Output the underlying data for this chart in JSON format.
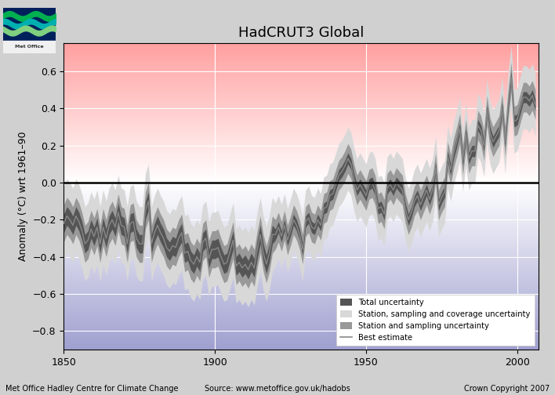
{
  "title": "HadCRUT3 Global",
  "ylabel": "Anomaly (°C) wrt 1961–90",
  "xlim": [
    1850,
    2007
  ],
  "ylim": [
    -0.9,
    0.75
  ],
  "yticks": [
    -0.8,
    -0.6,
    -0.4,
    -0.2,
    0.0,
    0.2,
    0.4,
    0.6
  ],
  "xticks": [
    1850,
    1900,
    1950,
    2000
  ],
  "footer_left": "Met Office Hadley Centre for Climate Change",
  "footer_center": "Source: www.metoffice.gov.uk/hadobs",
  "footer_right": "Crown Copyright 2007",
  "zero_line_color": "#000000",
  "best_estimate_color": "#888888",
  "color_total": "#555555",
  "color_ssc": "#d8d8d8",
  "color_ss": "#999999",
  "grid_color": "#ffffff",
  "years": [
    1850,
    1851,
    1852,
    1853,
    1854,
    1855,
    1856,
    1857,
    1858,
    1859,
    1860,
    1861,
    1862,
    1863,
    1864,
    1865,
    1866,
    1867,
    1868,
    1869,
    1870,
    1871,
    1872,
    1873,
    1874,
    1875,
    1876,
    1877,
    1878,
    1879,
    1880,
    1881,
    1882,
    1883,
    1884,
    1885,
    1886,
    1887,
    1888,
    1889,
    1890,
    1891,
    1892,
    1893,
    1894,
    1895,
    1896,
    1897,
    1898,
    1899,
    1900,
    1901,
    1902,
    1903,
    1904,
    1905,
    1906,
    1907,
    1908,
    1909,
    1910,
    1911,
    1912,
    1913,
    1914,
    1915,
    1916,
    1917,
    1918,
    1919,
    1920,
    1921,
    1922,
    1923,
    1924,
    1925,
    1926,
    1927,
    1928,
    1929,
    1930,
    1931,
    1932,
    1933,
    1934,
    1935,
    1936,
    1937,
    1938,
    1939,
    1940,
    1941,
    1942,
    1943,
    1944,
    1945,
    1946,
    1947,
    1948,
    1949,
    1950,
    1951,
    1952,
    1953,
    1954,
    1955,
    1956,
    1957,
    1958,
    1959,
    1960,
    1961,
    1962,
    1963,
    1964,
    1965,
    1966,
    1967,
    1968,
    1969,
    1970,
    1971,
    1972,
    1973,
    1974,
    1975,
    1976,
    1977,
    1978,
    1979,
    1980,
    1981,
    1982,
    1983,
    1984,
    1985,
    1986,
    1987,
    1988,
    1989,
    1990,
    1991,
    1992,
    1993,
    1994,
    1995,
    1996,
    1997,
    1998,
    1999,
    2000,
    2001,
    2002,
    2003,
    2004,
    2005,
    2006
  ],
  "best": [
    -0.22,
    -0.18,
    -0.2,
    -0.23,
    -0.18,
    -0.21,
    -0.26,
    -0.33,
    -0.31,
    -0.25,
    -0.29,
    -0.24,
    -0.33,
    -0.24,
    -0.3,
    -0.23,
    -0.2,
    -0.24,
    -0.16,
    -0.23,
    -0.24,
    -0.33,
    -0.22,
    -0.21,
    -0.3,
    -0.33,
    -0.33,
    -0.15,
    -0.1,
    -0.33,
    -0.27,
    -0.23,
    -0.27,
    -0.3,
    -0.35,
    -0.37,
    -0.34,
    -0.35,
    -0.3,
    -0.27,
    -0.38,
    -0.37,
    -0.42,
    -0.44,
    -0.4,
    -0.43,
    -0.32,
    -0.3,
    -0.41,
    -0.36,
    -0.36,
    -0.35,
    -0.4,
    -0.44,
    -0.43,
    -0.37,
    -0.31,
    -0.45,
    -0.43,
    -0.46,
    -0.44,
    -0.47,
    -0.43,
    -0.46,
    -0.36,
    -0.28,
    -0.38,
    -0.44,
    -0.38,
    -0.28,
    -0.28,
    -0.24,
    -0.29,
    -0.23,
    -0.31,
    -0.26,
    -0.2,
    -0.23,
    -0.28,
    -0.36,
    -0.21,
    -0.19,
    -0.24,
    -0.25,
    -0.2,
    -0.23,
    -0.14,
    -0.13,
    -0.07,
    -0.06,
    -0.01,
    0.04,
    0.06,
    0.09,
    0.13,
    0.1,
    0.02,
    -0.04,
    -0.01,
    -0.04,
    -0.07,
    -0.01,
    -0.0,
    -0.04,
    -0.14,
    -0.13,
    -0.17,
    -0.03,
    -0.01,
    -0.04,
    -0.0,
    -0.02,
    -0.04,
    -0.14,
    -0.2,
    -0.16,
    -0.1,
    -0.07,
    -0.12,
    -0.08,
    -0.04,
    -0.09,
    -0.04,
    0.08,
    -0.12,
    -0.08,
    -0.05,
    0.14,
    0.07,
    0.16,
    0.22,
    0.29,
    0.12,
    0.26,
    0.13,
    0.17,
    0.17,
    0.31,
    0.28,
    0.2,
    0.39,
    0.27,
    0.22,
    0.25,
    0.28,
    0.4,
    0.22,
    0.42,
    0.57,
    0.33,
    0.34,
    0.4,
    0.46,
    0.46,
    0.44,
    0.47,
    0.42
  ],
  "ssc_lo": [
    -0.42,
    -0.38,
    -0.4,
    -0.43,
    -0.38,
    -0.41,
    -0.46,
    -0.53,
    -0.51,
    -0.45,
    -0.49,
    -0.44,
    -0.53,
    -0.44,
    -0.5,
    -0.43,
    -0.4,
    -0.44,
    -0.36,
    -0.43,
    -0.44,
    -0.53,
    -0.42,
    -0.41,
    -0.5,
    -0.53,
    -0.53,
    -0.35,
    -0.3,
    -0.53,
    -0.47,
    -0.43,
    -0.47,
    -0.5,
    -0.55,
    -0.57,
    -0.54,
    -0.55,
    -0.5,
    -0.47,
    -0.58,
    -0.57,
    -0.62,
    -0.64,
    -0.6,
    -0.63,
    -0.52,
    -0.5,
    -0.61,
    -0.56,
    -0.56,
    -0.55,
    -0.6,
    -0.64,
    -0.63,
    -0.57,
    -0.51,
    -0.65,
    -0.63,
    -0.66,
    -0.64,
    -0.67,
    -0.63,
    -0.66,
    -0.56,
    -0.48,
    -0.58,
    -0.64,
    -0.58,
    -0.48,
    -0.45,
    -0.41,
    -0.46,
    -0.4,
    -0.48,
    -0.43,
    -0.37,
    -0.4,
    -0.45,
    -0.53,
    -0.38,
    -0.36,
    -0.41,
    -0.42,
    -0.37,
    -0.4,
    -0.31,
    -0.3,
    -0.24,
    -0.23,
    -0.18,
    -0.13,
    -0.11,
    -0.08,
    -0.04,
    -0.07,
    -0.15,
    -0.21,
    -0.18,
    -0.21,
    -0.24,
    -0.18,
    -0.17,
    -0.21,
    -0.31,
    -0.3,
    -0.34,
    -0.2,
    -0.18,
    -0.21,
    -0.17,
    -0.19,
    -0.21,
    -0.31,
    -0.37,
    -0.33,
    -0.27,
    -0.24,
    -0.29,
    -0.25,
    -0.21,
    -0.26,
    -0.21,
    -0.09,
    -0.29,
    -0.25,
    -0.22,
    -0.03,
    -0.1,
    -0.01,
    0.05,
    0.12,
    -0.05,
    0.09,
    -0.04,
    0.0,
    0.0,
    0.14,
    0.11,
    0.03,
    0.22,
    0.1,
    0.05,
    0.08,
    0.11,
    0.23,
    0.05,
    0.25,
    0.4,
    0.16,
    0.17,
    0.23,
    0.29,
    0.29,
    0.27,
    0.3,
    0.25
  ],
  "ssc_hi": [
    -0.02,
    0.02,
    0.0,
    -0.03,
    0.02,
    -0.01,
    -0.06,
    -0.13,
    -0.11,
    -0.05,
    -0.09,
    -0.04,
    -0.13,
    -0.04,
    -0.1,
    -0.03,
    0.0,
    -0.04,
    0.04,
    -0.03,
    -0.04,
    -0.13,
    -0.02,
    -0.01,
    -0.1,
    -0.13,
    -0.13,
    0.05,
    0.1,
    -0.13,
    -0.07,
    -0.03,
    -0.07,
    -0.1,
    -0.15,
    -0.17,
    -0.14,
    -0.15,
    -0.1,
    -0.07,
    -0.18,
    -0.17,
    -0.22,
    -0.24,
    -0.2,
    -0.23,
    -0.12,
    -0.1,
    -0.21,
    -0.16,
    -0.16,
    -0.15,
    -0.2,
    -0.24,
    -0.23,
    -0.17,
    -0.11,
    -0.25,
    -0.23,
    -0.26,
    -0.24,
    -0.27,
    -0.23,
    -0.26,
    -0.16,
    -0.08,
    -0.18,
    -0.24,
    -0.18,
    -0.08,
    -0.11,
    -0.07,
    -0.12,
    -0.06,
    -0.14,
    -0.09,
    -0.03,
    -0.06,
    -0.11,
    -0.19,
    -0.04,
    -0.02,
    -0.07,
    -0.08,
    -0.03,
    -0.06,
    0.03,
    0.04,
    0.1,
    0.11,
    0.16,
    0.21,
    0.23,
    0.26,
    0.3,
    0.27,
    0.19,
    0.13,
    0.16,
    0.13,
    0.1,
    0.16,
    0.17,
    0.13,
    0.03,
    0.04,
    0.0,
    0.14,
    0.16,
    0.13,
    0.17,
    0.15,
    0.13,
    0.03,
    -0.03,
    0.01,
    0.07,
    0.1,
    0.05,
    0.09,
    0.13,
    0.08,
    0.13,
    0.25,
    0.05,
    0.09,
    0.12,
    0.31,
    0.24,
    0.33,
    0.39,
    0.46,
    0.29,
    0.43,
    0.3,
    0.34,
    0.34,
    0.48,
    0.45,
    0.37,
    0.56,
    0.44,
    0.39,
    0.42,
    0.45,
    0.57,
    0.39,
    0.59,
    0.74,
    0.5,
    0.51,
    0.57,
    0.63,
    0.63,
    0.61,
    0.64,
    0.59
  ],
  "ss_lo": [
    -0.32,
    -0.28,
    -0.3,
    -0.33,
    -0.28,
    -0.31,
    -0.36,
    -0.43,
    -0.41,
    -0.35,
    -0.39,
    -0.34,
    -0.43,
    -0.34,
    -0.4,
    -0.33,
    -0.3,
    -0.34,
    -0.26,
    -0.33,
    -0.34,
    -0.43,
    -0.32,
    -0.31,
    -0.4,
    -0.43,
    -0.43,
    -0.25,
    -0.2,
    -0.43,
    -0.37,
    -0.33,
    -0.37,
    -0.4,
    -0.45,
    -0.47,
    -0.44,
    -0.45,
    -0.4,
    -0.37,
    -0.48,
    -0.47,
    -0.52,
    -0.54,
    -0.5,
    -0.53,
    -0.42,
    -0.4,
    -0.51,
    -0.46,
    -0.46,
    -0.45,
    -0.5,
    -0.54,
    -0.53,
    -0.47,
    -0.41,
    -0.55,
    -0.53,
    -0.56,
    -0.54,
    -0.57,
    -0.53,
    -0.56,
    -0.46,
    -0.38,
    -0.48,
    -0.54,
    -0.48,
    -0.38,
    -0.36,
    -0.32,
    -0.37,
    -0.31,
    -0.39,
    -0.34,
    -0.28,
    -0.31,
    -0.36,
    -0.44,
    -0.29,
    -0.27,
    -0.32,
    -0.33,
    -0.28,
    -0.31,
    -0.22,
    -0.21,
    -0.15,
    -0.14,
    -0.09,
    -0.04,
    -0.02,
    0.01,
    0.05,
    0.02,
    -0.06,
    -0.12,
    -0.09,
    -0.12,
    -0.15,
    -0.09,
    -0.08,
    -0.12,
    -0.22,
    -0.21,
    -0.25,
    -0.11,
    -0.09,
    -0.12,
    -0.08,
    -0.1,
    -0.12,
    -0.22,
    -0.28,
    -0.24,
    -0.18,
    -0.15,
    -0.2,
    -0.16,
    -0.12,
    -0.17,
    -0.12,
    0.0,
    -0.2,
    -0.16,
    -0.13,
    0.06,
    -0.01,
    0.08,
    0.14,
    0.21,
    0.04,
    0.18,
    0.05,
    0.09,
    0.09,
    0.23,
    0.2,
    0.12,
    0.31,
    0.19,
    0.14,
    0.17,
    0.2,
    0.32,
    0.14,
    0.34,
    0.49,
    0.25,
    0.26,
    0.32,
    0.38,
    0.38,
    0.36,
    0.39,
    0.34
  ],
  "ss_hi": [
    -0.12,
    -0.08,
    -0.1,
    -0.13,
    -0.08,
    -0.11,
    -0.16,
    -0.23,
    -0.21,
    -0.15,
    -0.19,
    -0.14,
    -0.23,
    -0.14,
    -0.2,
    -0.13,
    -0.1,
    -0.14,
    -0.06,
    -0.13,
    -0.14,
    -0.23,
    -0.12,
    -0.11,
    -0.2,
    -0.23,
    -0.23,
    -0.05,
    0.0,
    -0.23,
    -0.17,
    -0.13,
    -0.17,
    -0.2,
    -0.25,
    -0.27,
    -0.24,
    -0.25,
    -0.2,
    -0.17,
    -0.28,
    -0.27,
    -0.32,
    -0.34,
    -0.3,
    -0.33,
    -0.22,
    -0.2,
    -0.31,
    -0.26,
    -0.26,
    -0.25,
    -0.3,
    -0.34,
    -0.33,
    -0.27,
    -0.21,
    -0.35,
    -0.33,
    -0.36,
    -0.34,
    -0.37,
    -0.33,
    -0.36,
    -0.26,
    -0.18,
    -0.28,
    -0.34,
    -0.28,
    -0.18,
    -0.2,
    -0.16,
    -0.21,
    -0.15,
    -0.23,
    -0.18,
    -0.12,
    -0.15,
    -0.2,
    -0.28,
    -0.13,
    -0.11,
    -0.16,
    -0.17,
    -0.12,
    -0.15,
    -0.06,
    -0.05,
    0.01,
    0.02,
    0.07,
    0.12,
    0.14,
    0.17,
    0.21,
    0.18,
    0.1,
    0.04,
    0.07,
    0.04,
    0.01,
    0.07,
    0.08,
    0.04,
    -0.06,
    -0.05,
    -0.09,
    0.05,
    0.07,
    0.04,
    0.08,
    0.06,
    0.04,
    -0.06,
    -0.12,
    -0.08,
    -0.02,
    0.01,
    -0.04,
    0.0,
    0.04,
    -0.01,
    0.04,
    0.16,
    -0.04,
    0.0,
    0.03,
    0.22,
    0.15,
    0.24,
    0.3,
    0.37,
    0.2,
    0.34,
    0.21,
    0.25,
    0.25,
    0.39,
    0.36,
    0.28,
    0.47,
    0.35,
    0.3,
    0.33,
    0.36,
    0.48,
    0.3,
    0.5,
    0.65,
    0.41,
    0.42,
    0.48,
    0.54,
    0.54,
    0.52,
    0.55,
    0.5
  ],
  "total_lo": [
    -0.27,
    -0.23,
    -0.25,
    -0.28,
    -0.23,
    -0.26,
    -0.31,
    -0.38,
    -0.36,
    -0.3,
    -0.34,
    -0.29,
    -0.38,
    -0.29,
    -0.35,
    -0.28,
    -0.25,
    -0.29,
    -0.21,
    -0.28,
    -0.29,
    -0.38,
    -0.27,
    -0.26,
    -0.35,
    -0.38,
    -0.38,
    -0.2,
    -0.15,
    -0.38,
    -0.32,
    -0.28,
    -0.32,
    -0.35,
    -0.4,
    -0.42,
    -0.39,
    -0.4,
    -0.35,
    -0.32,
    -0.43,
    -0.42,
    -0.47,
    -0.49,
    -0.45,
    -0.48,
    -0.37,
    -0.35,
    -0.46,
    -0.41,
    -0.41,
    -0.4,
    -0.45,
    -0.49,
    -0.48,
    -0.42,
    -0.36,
    -0.5,
    -0.48,
    -0.51,
    -0.49,
    -0.52,
    -0.48,
    -0.51,
    -0.41,
    -0.33,
    -0.43,
    -0.49,
    -0.43,
    -0.33,
    -0.31,
    -0.27,
    -0.32,
    -0.26,
    -0.34,
    -0.29,
    -0.23,
    -0.26,
    -0.31,
    -0.39,
    -0.24,
    -0.22,
    -0.27,
    -0.28,
    -0.23,
    -0.26,
    -0.17,
    -0.16,
    -0.1,
    -0.09,
    -0.04,
    0.01,
    0.03,
    0.06,
    0.1,
    0.07,
    -0.01,
    -0.07,
    -0.04,
    -0.07,
    -0.1,
    -0.04,
    -0.03,
    -0.07,
    -0.17,
    -0.16,
    -0.2,
    -0.06,
    -0.04,
    -0.07,
    -0.03,
    -0.05,
    -0.07,
    -0.17,
    -0.23,
    -0.19,
    -0.13,
    -0.1,
    -0.15,
    -0.11,
    -0.07,
    -0.12,
    -0.07,
    0.05,
    -0.15,
    -0.11,
    -0.08,
    0.11,
    0.04,
    0.13,
    0.19,
    0.26,
    0.09,
    0.23,
    0.1,
    0.14,
    0.14,
    0.28,
    0.25,
    0.17,
    0.36,
    0.24,
    0.19,
    0.22,
    0.25,
    0.37,
    0.19,
    0.39,
    0.54,
    0.3,
    0.31,
    0.37,
    0.43,
    0.43,
    0.41,
    0.44,
    0.39
  ],
  "total_hi": [
    -0.17,
    -0.13,
    -0.15,
    -0.18,
    -0.13,
    -0.16,
    -0.21,
    -0.28,
    -0.26,
    -0.2,
    -0.24,
    -0.19,
    -0.28,
    -0.19,
    -0.25,
    -0.18,
    -0.15,
    -0.19,
    -0.11,
    -0.18,
    -0.19,
    -0.28,
    -0.17,
    -0.16,
    -0.25,
    -0.28,
    -0.28,
    -0.1,
    -0.05,
    -0.28,
    -0.22,
    -0.18,
    -0.22,
    -0.25,
    -0.3,
    -0.32,
    -0.29,
    -0.3,
    -0.25,
    -0.22,
    -0.33,
    -0.32,
    -0.37,
    -0.39,
    -0.35,
    -0.38,
    -0.27,
    -0.25,
    -0.36,
    -0.31,
    -0.31,
    -0.3,
    -0.35,
    -0.39,
    -0.38,
    -0.32,
    -0.26,
    -0.4,
    -0.38,
    -0.41,
    -0.39,
    -0.42,
    -0.38,
    -0.41,
    -0.31,
    -0.23,
    -0.33,
    -0.39,
    -0.33,
    -0.23,
    -0.25,
    -0.21,
    -0.26,
    -0.2,
    -0.28,
    -0.23,
    -0.17,
    -0.2,
    -0.25,
    -0.33,
    -0.18,
    -0.16,
    -0.21,
    -0.22,
    -0.17,
    -0.2,
    -0.11,
    -0.1,
    -0.04,
    -0.03,
    0.02,
    0.07,
    0.09,
    0.12,
    0.16,
    0.13,
    0.05,
    -0.01,
    0.02,
    -0.01,
    -0.04,
    0.02,
    0.03,
    -0.01,
    -0.11,
    -0.1,
    -0.14,
    0.0,
    0.02,
    -0.01,
    0.03,
    0.01,
    -0.01,
    -0.11,
    -0.17,
    -0.13,
    -0.07,
    -0.04,
    -0.09,
    -0.05,
    -0.01,
    -0.06,
    -0.01,
    0.11,
    -0.09,
    -0.05,
    -0.02,
    0.17,
    0.1,
    0.19,
    0.25,
    0.32,
    0.15,
    0.29,
    0.16,
    0.2,
    0.2,
    0.34,
    0.31,
    0.23,
    0.42,
    0.3,
    0.25,
    0.28,
    0.31,
    0.43,
    0.25,
    0.45,
    0.6,
    0.36,
    0.37,
    0.43,
    0.49,
    0.49,
    0.47,
    0.5,
    0.45
  ]
}
